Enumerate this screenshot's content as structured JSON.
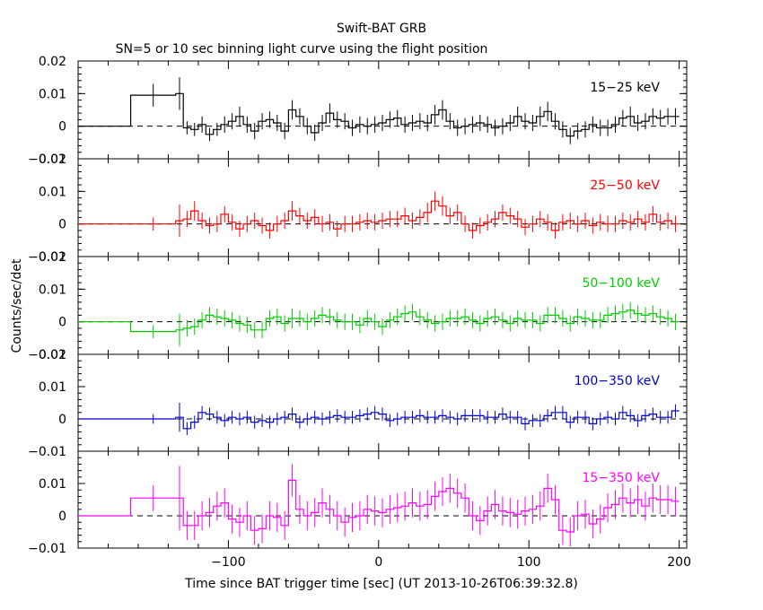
{
  "chart_data": {
    "type": "line",
    "title": "Swift-BAT GRB",
    "subtitle": "SN=5 or 10 sec binning light curve using the flight position",
    "xlabel": "Time since BAT trigger time [sec] (UT 2013-10-26T06:39:32.8)",
    "ylabel": "Counts/sec/det",
    "xlim": [
      -200,
      205
    ],
    "x_ticks": [
      -100,
      0,
      100,
      200
    ],
    "x_tick_labels": [
      "−100",
      "0",
      "100",
      "200"
    ],
    "panels": [
      {
        "name": "15-25 keV",
        "label": "15−25 keV",
        "color": "#000000",
        "ylim": [
          -0.01,
          0.02
        ],
        "y_ticks": [
          -0.01,
          0,
          0.01,
          0.02
        ],
        "y_tick_labels": [
          "−0.01",
          "0",
          "0.01",
          "0.02"
        ],
        "edges": [
          -200,
          -165,
          -135,
          -130,
          -125,
          -120,
          -115,
          -110,
          -105,
          -100,
          -95,
          -90,
          -85,
          -80,
          -75,
          -70,
          -65,
          -60,
          -55,
          -50,
          -45,
          -40,
          -35,
          -30,
          -25,
          -20,
          -15,
          -10,
          -5,
          0,
          5,
          10,
          15,
          20,
          25,
          30,
          35,
          40,
          45,
          50,
          55,
          60,
          65,
          70,
          75,
          80,
          85,
          90,
          95,
          100,
          105,
          110,
          115,
          120,
          125,
          130,
          135,
          140,
          145,
          150,
          155,
          160,
          165,
          170,
          175,
          180,
          185,
          190,
          195,
          200
        ],
        "values": [
          0,
          0.0095,
          0.01,
          -0.0005,
          -0.001,
          0.0005,
          -0.0025,
          -0.001,
          0.0005,
          0.0015,
          0.003,
          0.0005,
          -0.0015,
          0.0015,
          0.002,
          0.001,
          -0.0015,
          0.005,
          0.003,
          0.0,
          -0.002,
          0.001,
          0.004,
          0.002,
          0.0015,
          -0.0005,
          0.0005,
          0.0,
          0.0005,
          0.001,
          0.002,
          0.0025,
          0.0005,
          0.001,
          0.0015,
          0.001,
          0.0035,
          0.005,
          0.0015,
          -0.0005,
          0.0,
          0.0005,
          0.001,
          0.0005,
          -0.0005,
          0.0,
          0.001,
          0.003,
          0.0015,
          0.001,
          0.003,
          0.0045,
          0.0015,
          -0.001,
          -0.003,
          -0.0015,
          -0.001,
          0.0005,
          -0.0005,
          -0.0005,
          0.0005,
          0.0025,
          0.003,
          0.001,
          0.0015,
          0.003,
          0.0025,
          0.003,
          0.003
        ],
        "errors": [
          0,
          0.0035,
          0.005,
          0.002,
          0.002,
          0.0025,
          0.002,
          0.002,
          0.0025,
          0.0025,
          0.003,
          0.0025,
          0.0025,
          0.0025,
          0.0025,
          0.0025,
          0.0025,
          0.003,
          0.0025,
          0.0025,
          0.0025,
          0.0025,
          0.003,
          0.0025,
          0.0025,
          0.0025,
          0.0025,
          0.0025,
          0.0025,
          0.0025,
          0.0025,
          0.0025,
          0.0025,
          0.0025,
          0.0025,
          0.0025,
          0.003,
          0.003,
          0.0025,
          0.0025,
          0.0025,
          0.0025,
          0.0025,
          0.0025,
          0.0025,
          0.0025,
          0.0025,
          0.003,
          0.0025,
          0.0025,
          0.003,
          0.003,
          0.0025,
          0.0025,
          0.0025,
          0.0025,
          0.0025,
          0.0025,
          0.0025,
          0.0025,
          0.0025,
          0.0025,
          0.003,
          0.0025,
          0.0025,
          0.0025,
          0.0025,
          0.0025,
          0.0025
        ]
      },
      {
        "name": "25-50 keV",
        "label": "25−50 keV",
        "color": "#ff0000",
        "ylim": [
          -0.01,
          0.02
        ],
        "y_ticks": [
          -0.01,
          0,
          0.01,
          0.02
        ],
        "y_tick_labels": [
          "−0.01",
          "0",
          "0.01",
          "0.02"
        ],
        "edges": [
          -200,
          -165,
          -135,
          -130,
          -125,
          -120,
          -115,
          -110,
          -105,
          -100,
          -95,
          -90,
          -85,
          -80,
          -75,
          -70,
          -65,
          -60,
          -55,
          -50,
          -45,
          -40,
          -35,
          -30,
          -25,
          -20,
          -15,
          -10,
          -5,
          0,
          5,
          10,
          15,
          20,
          25,
          30,
          35,
          40,
          45,
          50,
          55,
          60,
          65,
          70,
          75,
          80,
          85,
          90,
          95,
          100,
          105,
          110,
          115,
          120,
          125,
          130,
          135,
          140,
          145,
          150,
          155,
          160,
          165,
          170,
          175,
          180,
          185,
          190,
          195,
          200
        ],
        "values": [
          0,
          0.0,
          0.001,
          0.0015,
          0.004,
          0.001,
          -0.0005,
          0.0,
          0.003,
          0.0005,
          -0.0015,
          0.0,
          0.001,
          -0.0005,
          -0.002,
          0.0,
          0.001,
          0.004,
          0.0025,
          0.001,
          0.002,
          0.0,
          0.0005,
          -0.0015,
          0.0,
          0.0,
          0.0005,
          0.001,
          0.0005,
          0.001,
          0.0015,
          0.0015,
          0.0025,
          0.001,
          0.002,
          0.0035,
          0.007,
          0.0055,
          0.0025,
          0.0035,
          0.0,
          -0.002,
          -0.0005,
          0.0005,
          0.0015,
          0.0035,
          0.0025,
          0.0015,
          -0.001,
          0.0,
          0.0015,
          0.0005,
          -0.002,
          0.0005,
          0.001,
          0.0,
          0.001,
          -0.0005,
          0.0005,
          0.0,
          0.0,
          0.001,
          0.0005,
          0.0015,
          0.0005,
          0.003,
          0.0005,
          0.001,
          0.0
        ],
        "errors": [
          0,
          0.002,
          0.005,
          0.0025,
          0.003,
          0.0025,
          0.0025,
          0.0025,
          0.0025,
          0.0025,
          0.0025,
          0.0025,
          0.0025,
          0.0025,
          0.0025,
          0.0025,
          0.0025,
          0.003,
          0.0025,
          0.0025,
          0.0025,
          0.0025,
          0.0025,
          0.0025,
          0.0025,
          0.0025,
          0.0025,
          0.0025,
          0.0025,
          0.0025,
          0.0025,
          0.0025,
          0.0025,
          0.0025,
          0.0025,
          0.003,
          0.003,
          0.003,
          0.0025,
          0.0025,
          0.0025,
          0.0025,
          0.0025,
          0.0025,
          0.0025,
          0.0025,
          0.0025,
          0.0025,
          0.0025,
          0.0025,
          0.0025,
          0.0025,
          0.0025,
          0.0025,
          0.0025,
          0.0025,
          0.0025,
          0.0025,
          0.0025,
          0.0025,
          0.0025,
          0.0025,
          0.0025,
          0.0025,
          0.0025,
          0.0025,
          0.0025,
          0.0025,
          0.0025
        ]
      },
      {
        "name": "50-100 keV",
        "label": "50−100 keV",
        "color": "#00cc00",
        "ylim": [
          -0.01,
          0.02
        ],
        "y_ticks": [
          -0.01,
          0,
          0.01,
          0.02
        ],
        "y_tick_labels": [
          "−0.01",
          "0",
          "0.01",
          "0.02"
        ],
        "edges": [
          -200,
          -165,
          -135,
          -130,
          -125,
          -120,
          -115,
          -110,
          -105,
          -100,
          -95,
          -90,
          -85,
          -80,
          -75,
          -70,
          -65,
          -60,
          -55,
          -50,
          -45,
          -40,
          -35,
          -30,
          -25,
          -20,
          -15,
          -10,
          -5,
          0,
          5,
          10,
          15,
          20,
          25,
          30,
          35,
          40,
          45,
          50,
          55,
          60,
          65,
          70,
          75,
          80,
          85,
          90,
          95,
          100,
          105,
          110,
          115,
          120,
          125,
          130,
          135,
          140,
          145,
          150,
          155,
          160,
          165,
          170,
          175,
          180,
          185,
          190,
          195,
          200
        ],
        "values": [
          0,
          -0.003,
          -0.0025,
          -0.002,
          -0.0015,
          0.0005,
          0.002,
          0.0015,
          0.001,
          0.0005,
          -0.0005,
          -0.001,
          -0.0025,
          -0.0025,
          0.001,
          0.0015,
          -0.0005,
          0.001,
          0.001,
          0.0,
          0.001,
          0.002,
          0.0015,
          0.0005,
          0.0,
          0.0,
          -0.001,
          0.001,
          0.0,
          -0.0015,
          0.0005,
          0.0015,
          0.0025,
          0.003,
          0.0015,
          0.0005,
          -0.0005,
          0.0,
          0.001,
          0.001,
          0.0015,
          0.0005,
          -0.0005,
          0.001,
          0.0015,
          0.0005,
          -0.0005,
          0.001,
          0.0005,
          0.0005,
          -0.0005,
          0.002,
          0.002,
          0.001,
          -0.0005,
          0.0015,
          0.001,
          0.0005,
          0.0005,
          0.002,
          0.0025,
          0.003,
          0.0035,
          0.0025,
          0.002,
          0.0025,
          0.0015,
          0.001,
          0.0
        ],
        "errors": [
          0,
          0.002,
          0.005,
          0.0025,
          0.0025,
          0.0025,
          0.0025,
          0.0025,
          0.0025,
          0.0025,
          0.0025,
          0.0025,
          0.0025,
          0.0025,
          0.0025,
          0.0025,
          0.0025,
          0.003,
          0.0025,
          0.0025,
          0.0025,
          0.0025,
          0.0025,
          0.0025,
          0.0025,
          0.0025,
          0.0025,
          0.0025,
          0.0025,
          0.0025,
          0.0025,
          0.0025,
          0.0025,
          0.0025,
          0.0025,
          0.0025,
          0.0025,
          0.0025,
          0.0025,
          0.0025,
          0.0025,
          0.0025,
          0.0025,
          0.0025,
          0.0025,
          0.0025,
          0.0025,
          0.0025,
          0.0025,
          0.0025,
          0.0025,
          0.0025,
          0.0025,
          0.0025,
          0.0025,
          0.0025,
          0.0025,
          0.0025,
          0.0025,
          0.0025,
          0.0025,
          0.0025,
          0.0025,
          0.0025,
          0.0025,
          0.0025,
          0.0025,
          0.0025,
          0.0025
        ]
      },
      {
        "name": "100-350 keV",
        "label": "100−350 keV",
        "color": "#0000cc",
        "ylim": [
          -0.01,
          0.02
        ],
        "y_ticks": [
          -0.01,
          0,
          0.01,
          0.02
        ],
        "y_tick_labels": [
          "−0.01",
          "0",
          "0.01",
          "0.02"
        ],
        "edges": [
          -200,
          -165,
          -135,
          -130,
          -125,
          -120,
          -115,
          -110,
          -105,
          -100,
          -95,
          -90,
          -85,
          -80,
          -75,
          -70,
          -65,
          -60,
          -55,
          -50,
          -45,
          -40,
          -35,
          -30,
          -25,
          -20,
          -15,
          -10,
          -5,
          0,
          5,
          10,
          15,
          20,
          25,
          30,
          35,
          40,
          45,
          50,
          55,
          60,
          65,
          70,
          75,
          80,
          85,
          90,
          95,
          100,
          105,
          110,
          115,
          120,
          125,
          130,
          135,
          140,
          145,
          150,
          155,
          160,
          165,
          170,
          175,
          180,
          185,
          190,
          195,
          200
        ],
        "values": [
          0,
          0.0,
          0.0005,
          -0.003,
          -0.001,
          0.002,
          0.0015,
          0.0005,
          -0.0005,
          0.0005,
          0.0,
          0.0005,
          -0.001,
          -0.0005,
          -0.001,
          0.0,
          0.0005,
          0.0015,
          -0.001,
          0.0,
          0.0005,
          0.0,
          0.0005,
          0.001,
          0.0005,
          0.0005,
          0.001,
          0.0015,
          0.002,
          0.0015,
          -0.0005,
          0.0,
          0.0005,
          0.0005,
          0.001,
          0.0005,
          0.0005,
          0.001,
          0.0005,
          0.0,
          0.001,
          0.001,
          0.001,
          0.0005,
          0.0005,
          0.0015,
          0.0005,
          0.0005,
          -0.0015,
          -0.0005,
          -0.0005,
          0.001,
          0.002,
          0.002,
          -0.001,
          0.0005,
          0.0005,
          -0.0015,
          0.0,
          0.0005,
          0.0,
          0.002,
          0.001,
          -0.0005,
          0.001,
          0.0015,
          0.0005,
          0.0005,
          0.0025
        ],
        "errors": [
          0,
          0.0015,
          0.0045,
          0.002,
          0.002,
          0.002,
          0.002,
          0.002,
          0.002,
          0.002,
          0.002,
          0.002,
          0.002,
          0.002,
          0.002,
          0.002,
          0.002,
          0.002,
          0.002,
          0.002,
          0.002,
          0.002,
          0.002,
          0.002,
          0.002,
          0.002,
          0.002,
          0.002,
          0.002,
          0.002,
          0.002,
          0.002,
          0.002,
          0.002,
          0.002,
          0.002,
          0.002,
          0.002,
          0.002,
          0.002,
          0.002,
          0.002,
          0.002,
          0.002,
          0.002,
          0.002,
          0.002,
          0.002,
          0.002,
          0.002,
          0.002,
          0.002,
          0.002,
          0.002,
          0.002,
          0.002,
          0.002,
          0.002,
          0.002,
          0.002,
          0.002,
          0.002,
          0.002,
          0.002,
          0.002,
          0.002,
          0.002,
          0.002,
          0.002
        ]
      },
      {
        "name": "15-350 keV",
        "label": "15−350 keV",
        "color": "#ff00ff",
        "ylim": [
          -0.01,
          0.02
        ],
        "y_ticks": [
          -0.01,
          0,
          0.01
        ],
        "y_tick_labels": [
          "−0.01",
          "0",
          "0.01"
        ],
        "edges": [
          -200,
          -165,
          -135,
          -130,
          -125,
          -120,
          -115,
          -110,
          -105,
          -100,
          -95,
          -90,
          -85,
          -80,
          -75,
          -70,
          -65,
          -60,
          -55,
          -50,
          -45,
          -40,
          -35,
          -30,
          -25,
          -20,
          -15,
          -10,
          -5,
          0,
          5,
          10,
          15,
          20,
          25,
          30,
          35,
          40,
          45,
          50,
          55,
          60,
          65,
          70,
          75,
          80,
          85,
          90,
          95,
          100,
          105,
          110,
          115,
          120,
          125,
          130,
          135,
          140,
          145,
          150,
          155,
          160,
          165,
          170,
          175,
          180,
          185,
          190,
          195,
          200
        ],
        "values": [
          0,
          0.0055,
          0.0055,
          -0.003,
          -0.003,
          0.0,
          0.001,
          0.003,
          0.004,
          -0.001,
          -0.002,
          0.0,
          -0.0045,
          -0.004,
          0.0,
          -0.0005,
          -0.003,
          0.011,
          0.002,
          0.0,
          0.001,
          0.004,
          0.002,
          0.0,
          -0.002,
          -0.0005,
          0.0,
          0.002,
          0.0015,
          0.001,
          0.002,
          0.0025,
          0.003,
          0.004,
          0.003,
          0.0035,
          0.006,
          0.0075,
          0.0085,
          0.007,
          0.0055,
          0.0,
          -0.0015,
          0.0015,
          0.0035,
          0.0015,
          0.001,
          0.0005,
          0.0015,
          0.002,
          0.003,
          0.0085,
          0.005,
          -0.0045,
          -0.005,
          0.0,
          0.0005,
          -0.0025,
          -0.001,
          0.0025,
          0.0035,
          0.0055,
          0.004,
          0.005,
          0.003,
          0.0055,
          0.005,
          0.005,
          0.0045
        ],
        "errors": [
          0,
          0.004,
          0.01,
          0.0045,
          0.0045,
          0.0045,
          0.0045,
          0.0045,
          0.0045,
          0.0045,
          0.0045,
          0.0045,
          0.0045,
          0.0045,
          0.0045,
          0.0045,
          0.0045,
          0.005,
          0.0045,
          0.0045,
          0.0045,
          0.0045,
          0.0045,
          0.0045,
          0.0045,
          0.0045,
          0.0045,
          0.0045,
          0.0045,
          0.0045,
          0.0045,
          0.0045,
          0.0045,
          0.0045,
          0.0045,
          0.0045,
          0.0045,
          0.0045,
          0.0045,
          0.0045,
          0.0045,
          0.0045,
          0.0045,
          0.0045,
          0.0045,
          0.0045,
          0.0045,
          0.0045,
          0.0045,
          0.0045,
          0.0045,
          0.0045,
          0.0045,
          0.0045,
          0.0045,
          0.0045,
          0.0045,
          0.0045,
          0.0045,
          0.0045,
          0.0045,
          0.0045,
          0.0045,
          0.0045,
          0.0045,
          0.0045,
          0.0045,
          0.0045,
          0.0045
        ]
      }
    ]
  }
}
